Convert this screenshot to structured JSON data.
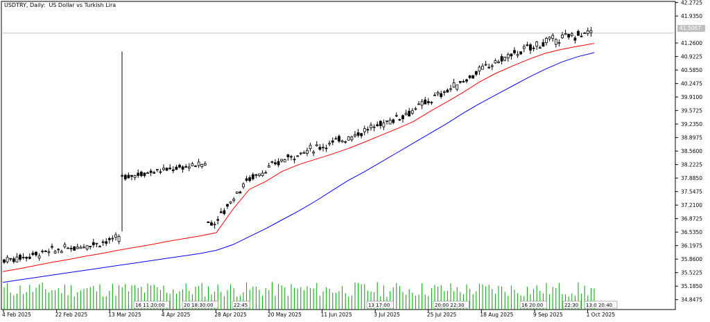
{
  "chart_data": {
    "type": "candlestick",
    "title": "USDTRY, Daily:  US Dollar vs Turkish Lira",
    "current_price": "41.5067",
    "grid": false,
    "ylim": [
      34.6,
      42.3
    ],
    "y_ticks": [
      "42.2725",
      "41.9350",
      "41.2600",
      "40.9225",
      "40.5850",
      "40.2475",
      "39.9100",
      "39.5725",
      "39.2350",
      "38.8975",
      "38.5600",
      "38.2225",
      "37.8850",
      "37.5475",
      "37.2100",
      "36.8725",
      "36.5350",
      "36.1975",
      "35.8600",
      "35.5225",
      "35.1850",
      "34.8475"
    ],
    "x_ticks": [
      "4 Feb 2025",
      "22 Feb 2025",
      "13 Mar 2025",
      "4 Apr 2025",
      "28 Apr 2025",
      "20 May 2025",
      "11 Jun 2025",
      "3 Jul 2025",
      "25 Jul 2025",
      "18 Aug 2025",
      "9 Sep 2025",
      "1 Oct 2025"
    ],
    "series": [
      {
        "name": "",
        "color": "#ff0000",
        "values": [
          35.55,
          35.62,
          35.7,
          35.78,
          35.85,
          35.93,
          36.0,
          36.08,
          36.15,
          36.22,
          36.3,
          36.37,
          36.44,
          36.52,
          37.1,
          37.6,
          37.8,
          38.05,
          38.22,
          38.35,
          38.48,
          38.62,
          38.78,
          38.95,
          39.12,
          39.3,
          39.55,
          39.78,
          40.02,
          40.28,
          40.5,
          40.68,
          40.85,
          41.0,
          41.1,
          41.18,
          41.25
        ]
      },
      {
        "name": "",
        "color": "#0000ff",
        "values": [
          35.28,
          35.34,
          35.4,
          35.46,
          35.52,
          35.58,
          35.64,
          35.7,
          35.76,
          35.82,
          35.88,
          35.94,
          36.0,
          36.08,
          36.22,
          36.42,
          36.62,
          36.84,
          37.06,
          37.3,
          37.56,
          37.82,
          38.04,
          38.28,
          38.52,
          38.76,
          39.0,
          39.24,
          39.5,
          39.74,
          39.96,
          40.18,
          40.4,
          40.6,
          40.78,
          40.92,
          41.02
        ]
      }
    ],
    "volume_spikes": [
      {
        "time": "16 11:20:00"
      },
      {
        "time": "20 18:30:00"
      },
      {
        "time": "22:45"
      },
      {
        "time": "13 17:00"
      },
      {
        "time": "20:00 22:30"
      },
      {
        "time": "16 20:00"
      },
      {
        "time": "22:30"
      },
      {
        "time": "13:0 20:40"
      }
    ]
  }
}
